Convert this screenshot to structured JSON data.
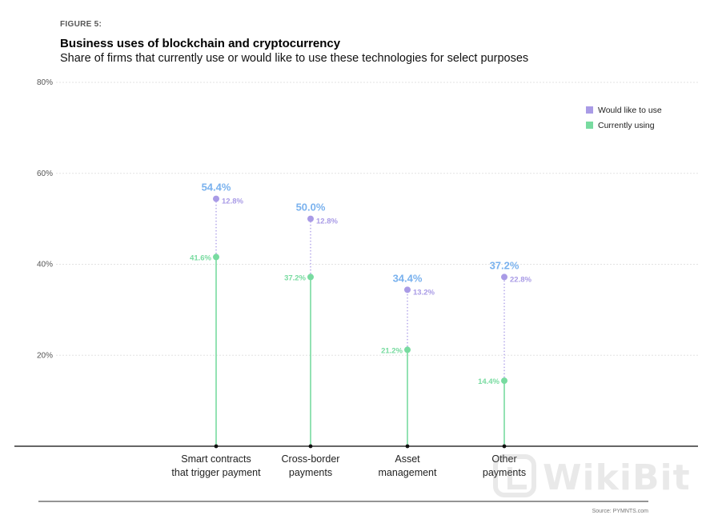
{
  "figure_label": "FIGURE 5:",
  "title": "Business uses of blockchain and cryptocurrency",
  "subtitle": "Share of firms that currently use or would like to use these technologies for select purposes",
  "source": "Source: PYMNTS.com",
  "watermark": "WikiBit",
  "colors": {
    "would_like": "#a99be6",
    "currently": "#78dba0",
    "total_label": "#7ab2ee",
    "grid": "#e2e2e2",
    "axis": "#333333"
  },
  "chart_data": {
    "type": "lollipop",
    "ylim": [
      0,
      80
    ],
    "yticks": [
      20,
      40,
      60,
      80
    ],
    "ytick_labels": [
      "20%",
      "40%",
      "60%",
      "80%"
    ],
    "grid": true,
    "legend_position": "top-right",
    "categories": [
      [
        "Smart contracts",
        "that trigger payment"
      ],
      [
        "Cross-border",
        "payments"
      ],
      [
        "Asset",
        "management"
      ],
      [
        "Other",
        "payments"
      ]
    ],
    "series": [
      {
        "name": "Would like to use",
        "values": [
          12.8,
          12.8,
          13.2,
          22.8
        ],
        "labels": [
          "12.8%",
          "12.8%",
          "13.2%",
          "22.8%"
        ]
      },
      {
        "name": "Currently using",
        "values": [
          41.6,
          37.2,
          21.2,
          14.4
        ],
        "labels": [
          "41.6%",
          "37.2%",
          "21.2%",
          "14.4%"
        ]
      }
    ],
    "totals": [
      54.4,
      50.0,
      34.4,
      37.2
    ],
    "total_labels": [
      "54.4%",
      "50.0%",
      "34.4%",
      "37.2%"
    ]
  }
}
